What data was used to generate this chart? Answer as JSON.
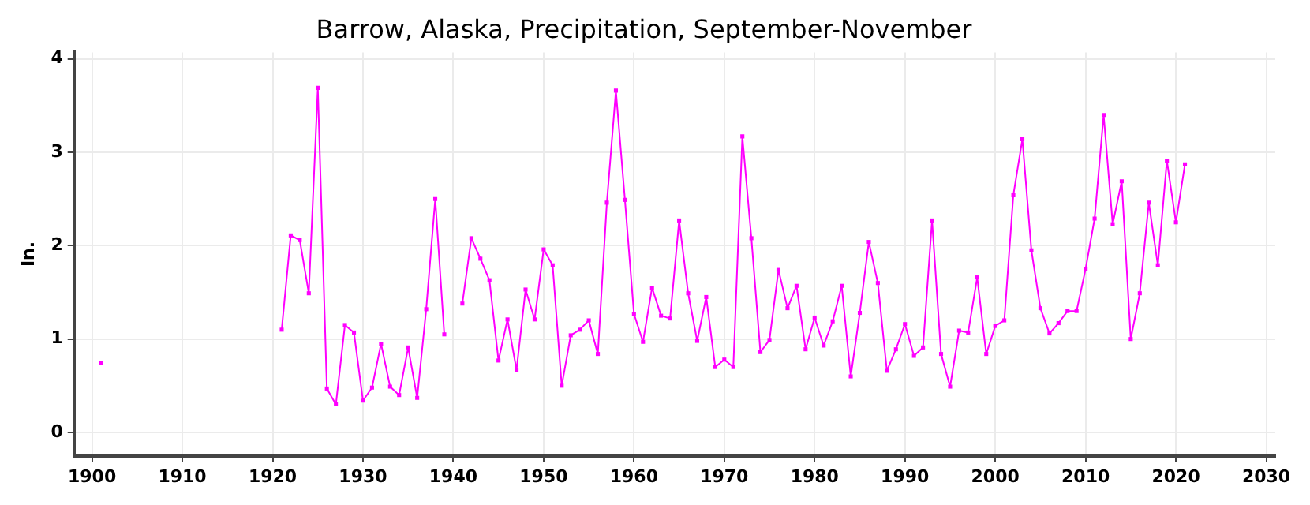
{
  "chart_data": {
    "type": "line",
    "title": "Barrow, Alaska, Precipitation, September-November",
    "ylabel": "In.",
    "x": [
      1901,
      1902,
      1903,
      1904,
      1905,
      1906,
      1907,
      1908,
      1909,
      1910,
      1911,
      1912,
      1913,
      1914,
      1915,
      1916,
      1917,
      1918,
      1919,
      1920,
      1921,
      1922,
      1923,
      1924,
      1925,
      1926,
      1927,
      1928,
      1929,
      1930,
      1931,
      1932,
      1933,
      1934,
      1935,
      1936,
      1937,
      1938,
      1939,
      1940,
      1941,
      1942,
      1943,
      1944,
      1945,
      1946,
      1947,
      1948,
      1949,
      1950,
      1951,
      1952,
      1953,
      1954,
      1955,
      1956,
      1957,
      1958,
      1959,
      1960,
      1961,
      1962,
      1963,
      1964,
      1965,
      1966,
      1967,
      1968,
      1969,
      1970,
      1971,
      1972,
      1973,
      1974,
      1975,
      1976,
      1977,
      1978,
      1979,
      1980,
      1981,
      1982,
      1983,
      1984,
      1985,
      1986,
      1987,
      1988,
      1989,
      1990,
      1991,
      1992,
      1993,
      1994,
      1995,
      1996,
      1997,
      1998,
      1999,
      2000,
      2001,
      2002,
      2003,
      2004,
      2005,
      2006,
      2007,
      2008,
      2009,
      2010,
      2011,
      2012,
      2013,
      2014,
      2015,
      2016,
      2017,
      2018,
      2019,
      2020,
      2021
    ],
    "series": [
      {
        "color": "#ff00ff",
        "values": [
          0.74,
          null,
          null,
          null,
          null,
          null,
          null,
          null,
          null,
          null,
          null,
          null,
          null,
          null,
          null,
          null,
          null,
          null,
          null,
          null,
          1.1,
          2.11,
          2.06,
          1.49,
          3.69,
          0.47,
          0.3,
          1.15,
          1.07,
          0.34,
          0.48,
          0.95,
          0.49,
          0.4,
          0.91,
          0.37,
          1.32,
          2.5,
          1.05,
          null,
          1.38,
          2.08,
          1.86,
          1.63,
          0.77,
          1.21,
          0.67,
          1.53,
          1.21,
          1.96,
          1.79,
          0.5,
          1.04,
          1.1,
          1.2,
          0.84,
          2.46,
          3.66,
          2.49,
          1.27,
          0.97,
          1.55,
          1.25,
          1.22,
          2.27,
          1.49,
          0.98,
          1.45,
          0.7,
          0.78,
          0.7,
          3.17,
          2.08,
          0.86,
          0.99,
          1.74,
          1.33,
          1.57,
          0.89,
          1.23,
          0.93,
          1.19,
          1.57,
          0.6,
          1.28,
          2.04,
          1.6,
          0.66,
          0.89,
          1.16,
          0.82,
          0.91,
          2.27,
          0.84,
          0.49,
          1.09,
          1.07,
          1.66,
          0.84,
          1.14,
          1.2,
          2.54,
          3.14,
          1.95,
          1.33,
          1.06,
          1.17,
          1.3,
          1.3,
          1.75,
          2.29,
          3.4,
          2.23,
          2.69,
          1.0,
          1.49,
          2.46,
          1.79,
          2.91,
          2.25,
          2.87
        ]
      }
    ],
    "xlim": [
      1898,
      2031
    ],
    "xticks": [
      1900,
      1910,
      1920,
      1930,
      1940,
      1950,
      1960,
      1970,
      1980,
      1990,
      2000,
      2010,
      2020,
      2030
    ],
    "ylim": [
      -0.25,
      4.07
    ],
    "yticks": [
      0,
      1,
      2,
      3,
      4
    ],
    "grid": true,
    "legend": false,
    "marker": "square",
    "line_style": "solid"
  }
}
